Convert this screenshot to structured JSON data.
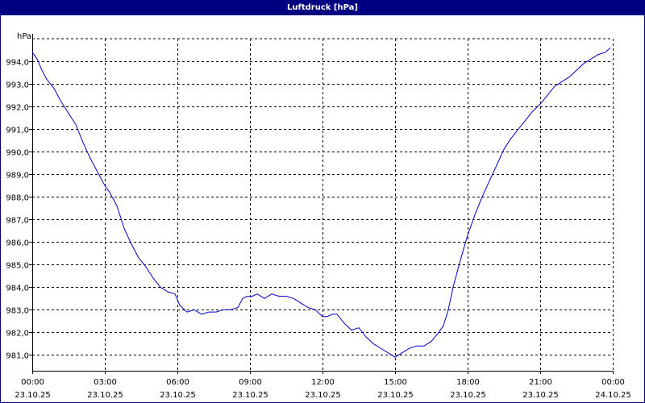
{
  "chart_data": {
    "type": "line",
    "title": "Luftdruck [hPa]",
    "ylabel": "hPa",
    "xlabel": "",
    "ylim": [
      980.3,
      995.0
    ],
    "xlim": [
      0,
      24
    ],
    "grid": true,
    "colors": {
      "line": "#0000cc",
      "title_bar": "#000080",
      "grid": "#000000"
    },
    "y_ticks": [
      {
        "value": 994.0,
        "label": "994,0"
      },
      {
        "value": 993.0,
        "label": "993,0"
      },
      {
        "value": 992.0,
        "label": "992,0"
      },
      {
        "value": 991.0,
        "label": "991,0"
      },
      {
        "value": 990.0,
        "label": "990,0"
      },
      {
        "value": 989.0,
        "label": "989,0"
      },
      {
        "value": 988.0,
        "label": "988,0"
      },
      {
        "value": 987.0,
        "label": "987,0"
      },
      {
        "value": 986.0,
        "label": "986,0"
      },
      {
        "value": 985.0,
        "label": "985,0"
      },
      {
        "value": 984.0,
        "label": "984,0"
      },
      {
        "value": 983.0,
        "label": "983,0"
      },
      {
        "value": 982.0,
        "label": "982,0"
      },
      {
        "value": 981.0,
        "label": "981,0"
      }
    ],
    "x_ticks": [
      {
        "value": 0,
        "time": "00:00",
        "date": "23.10.25"
      },
      {
        "value": 3,
        "time": "03:00",
        "date": "23.10.25"
      },
      {
        "value": 6,
        "time": "06:00",
        "date": "23.10.25"
      },
      {
        "value": 9,
        "time": "09:00",
        "date": "23.10.25"
      },
      {
        "value": 12,
        "time": "12:00",
        "date": "23.10.25"
      },
      {
        "value": 15,
        "time": "15:00",
        "date": "23.10.25"
      },
      {
        "value": 18,
        "time": "18:00",
        "date": "23.10.25"
      },
      {
        "value": 21,
        "time": "21:00",
        "date": "23.10.25"
      },
      {
        "value": 24,
        "time": "00:00",
        "date": "24.10.25"
      }
    ],
    "series": [
      {
        "x": [
          0,
          0.2,
          0.4,
          0.6,
          0.9,
          1.2,
          1.5,
          1.8,
          2.1,
          2.4,
          2.7,
          2.8,
          3.0,
          3.2,
          3.5,
          3.8,
          4.1,
          4.4,
          4.7,
          5.0,
          5.3,
          5.6,
          5.9,
          6.1,
          6.4,
          6.7,
          7.0,
          7.3,
          7.6,
          7.9,
          8.2,
          8.5,
          8.7,
          8.9,
          9.1,
          9.3,
          9.6,
          9.9,
          10.2,
          10.5,
          10.8,
          11.1,
          11.4,
          11.7,
          12.0,
          12.2,
          12.4,
          12.6,
          12.9,
          13.2,
          13.5,
          13.8,
          14.1,
          14.4,
          14.7,
          15.0,
          15.3,
          15.6,
          15.9,
          16.2,
          16.5,
          16.8,
          17.0,
          17.2,
          17.4,
          17.7,
          18.0,
          18.3,
          18.6,
          18.9,
          19.2,
          19.5,
          19.8,
          20.1,
          20.4,
          20.7,
          21.0,
          21.3,
          21.6,
          21.9,
          22.2,
          22.5,
          22.8,
          23.1,
          23.4,
          23.7,
          23.9
        ],
        "y": [
          994.4,
          994.1,
          993.6,
          993.2,
          992.8,
          992.2,
          991.7,
          991.2,
          990.4,
          989.7,
          989.1,
          988.9,
          988.5,
          988.2,
          987.6,
          986.6,
          985.9,
          985.3,
          984.9,
          984.4,
          984.0,
          983.8,
          983.7,
          983.2,
          982.9,
          983.0,
          982.8,
          982.9,
          982.9,
          983.0,
          983.0,
          983.1,
          983.5,
          983.6,
          983.6,
          983.7,
          983.5,
          983.7,
          983.6,
          983.6,
          983.5,
          983.3,
          983.1,
          983.0,
          982.7,
          982.7,
          982.8,
          982.8,
          982.4,
          982.1,
          982.2,
          981.8,
          981.5,
          981.3,
          981.1,
          980.9,
          981.1,
          981.3,
          981.4,
          981.4,
          981.6,
          982.0,
          982.3,
          983.0,
          984.0,
          985.2,
          986.3,
          987.2,
          988.0,
          988.7,
          989.4,
          990.1,
          990.6,
          991.0,
          991.4,
          991.8,
          992.1,
          992.5,
          992.9,
          993.1,
          993.3,
          993.6,
          993.9,
          994.1,
          994.3,
          994.4,
          994.6
        ]
      }
    ]
  }
}
